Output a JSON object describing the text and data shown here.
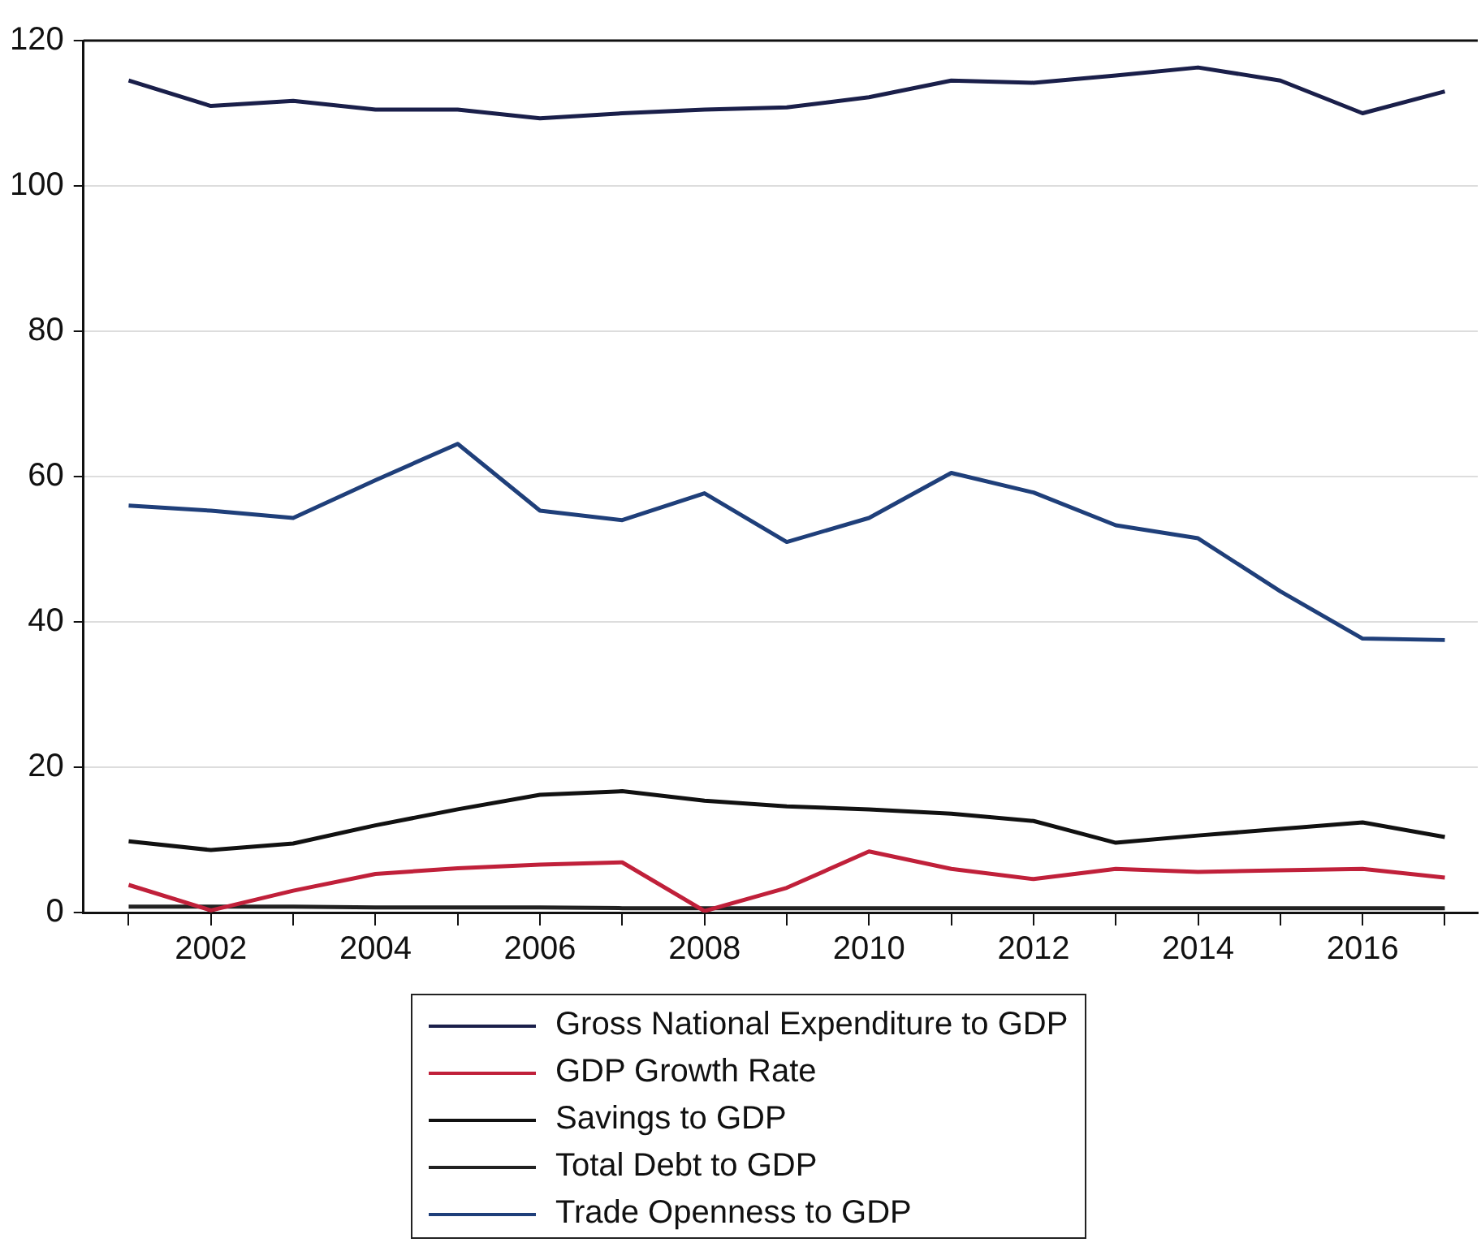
{
  "chart_data": {
    "type": "line",
    "x": [
      2001,
      2002,
      2003,
      2004,
      2005,
      2006,
      2007,
      2008,
      2009,
      2010,
      2011,
      2012,
      2013,
      2014,
      2015,
      2016,
      2017
    ],
    "series": [
      {
        "name": "Gross National Expenditure to GDP",
        "color": "#1a1f4a",
        "values": [
          114.5,
          111,
          111.7,
          110.5,
          110.5,
          109.3,
          110,
          110.5,
          110.8,
          112.2,
          114.5,
          114.2,
          115.2,
          116.3,
          114.5,
          110,
          113
        ]
      },
      {
        "name": "GDP Growth Rate",
        "color": "#c0203a",
        "values": [
          3.8,
          0.3,
          3,
          5.3,
          6.1,
          6.6,
          6.9,
          0.2,
          3.4,
          8.4,
          6,
          4.6,
          6,
          5.6,
          5.8,
          6,
          4.8
        ]
      },
      {
        "name": "Savings to GDP",
        "color": "#111111",
        "values": [
          9.8,
          8.6,
          9.5,
          12,
          14.2,
          16.2,
          16.7,
          15.4,
          14.6,
          14.2,
          13.6,
          12.6,
          9.6,
          10.6,
          11.5,
          12.4,
          10.4
        ]
      },
      {
        "name": "Total Debt to GDP",
        "color": "#222222",
        "values": [
          0.8,
          0.8,
          0.8,
          0.7,
          0.7,
          0.7,
          0.6,
          0.6,
          0.6,
          0.6,
          0.6,
          0.6,
          0.6,
          0.6,
          0.6,
          0.6,
          0.6
        ]
      },
      {
        "name": "Trade Openness to GDP",
        "color": "#1f3f7a",
        "values": [
          56,
          55.3,
          54.3,
          59.5,
          64.5,
          55.3,
          54,
          57.7,
          51,
          54.3,
          60.5,
          57.8,
          53.3,
          51.5,
          44.2,
          37.7,
          37.5
        ]
      }
    ],
    "xlim": [
      2000.45,
      2017.4
    ],
    "xticks": [
      {
        "value": 2001,
        "label": null
      },
      2002,
      {
        "value": 2003,
        "label": null
      },
      2004,
      {
        "value": 2005,
        "label": null
      },
      2006,
      {
        "value": 2007,
        "label": null
      },
      2008,
      {
        "value": 2009,
        "label": null
      },
      2010,
      {
        "value": 2011,
        "label": null
      },
      2012,
      {
        "value": 2013,
        "label": null
      },
      2014,
      {
        "value": 2015,
        "label": null
      },
      2016,
      {
        "value": 2017,
        "label": null
      }
    ],
    "ylim": [
      0,
      120
    ],
    "yticks": [
      0,
      20,
      40,
      60,
      80,
      100,
      120
    ],
    "grid": "y",
    "legend": "bottom"
  }
}
